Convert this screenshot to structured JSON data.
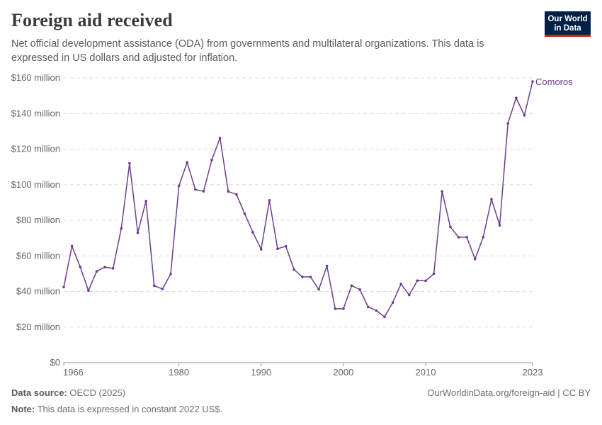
{
  "header": {
    "title": "Foreign aid received",
    "subtitle": "Net official development assistance (ODA) from governments and multilateral organizations. This data is expressed in US dollars and adjusted for inflation."
  },
  "logo": {
    "line1": "Our World",
    "line2": "in Data"
  },
  "footer": {
    "source_label": "Data source:",
    "source_value": "OECD (2025)",
    "note_label": "Note:",
    "note_value": "This data is expressed in constant 2022 US$.",
    "url": "OurWorldinData.org/foreign-aid | CC BY"
  },
  "colors": {
    "series": "#6b3d8f",
    "grid": "#dddddd",
    "axis": "#666666"
  },
  "chart_data": {
    "type": "line",
    "title": "Foreign aid received",
    "xlim": [
      1966,
      2023
    ],
    "ylim": [
      0,
      160000000
    ],
    "x_ticks": [
      1966,
      1980,
      1990,
      2000,
      2010,
      2023
    ],
    "y_ticks": [
      {
        "value": 0,
        "label": "$0"
      },
      {
        "value": 20000000,
        "label": "$20 million"
      },
      {
        "value": 40000000,
        "label": "$40 million"
      },
      {
        "value": 60000000,
        "label": "$60 million"
      },
      {
        "value": 80000000,
        "label": "$80 million"
      },
      {
        "value": 100000000,
        "label": "$100 million"
      },
      {
        "value": 120000000,
        "label": "$120 million"
      },
      {
        "value": 140000000,
        "label": "$140 million"
      },
      {
        "value": 160000000,
        "label": "$160 million"
      }
    ],
    "grid": "horizontal dashed",
    "series": [
      {
        "name": "Comoros",
        "x": [
          1966,
          1967,
          1968,
          1969,
          1970,
          1971,
          1972,
          1973,
          1974,
          1975,
          1976,
          1977,
          1978,
          1979,
          1980,
          1981,
          1982,
          1983,
          1984,
          1985,
          1986,
          1987,
          1988,
          1989,
          1990,
          1991,
          1992,
          1993,
          1994,
          1995,
          1996,
          1997,
          1998,
          1999,
          2000,
          2001,
          2002,
          2003,
          2004,
          2005,
          2006,
          2007,
          2008,
          2009,
          2010,
          2011,
          2012,
          2013,
          2014,
          2015,
          2016,
          2017,
          2018,
          2019,
          2020,
          2021,
          2022,
          2023
        ],
        "y": [
          42500000,
          65500000,
          53800000,
          40500000,
          51300000,
          53700000,
          53000000,
          75500000,
          112000000,
          73000000,
          90800000,
          43200000,
          41400000,
          49800000,
          99300000,
          112500000,
          97300000,
          96300000,
          113900000,
          126200000,
          96200000,
          94500000,
          83700000,
          73200000,
          63700000,
          91200000,
          64000000,
          65400000,
          52300000,
          48200000,
          48200000,
          41200000,
          54300000,
          30300000,
          30300000,
          43300000,
          41100000,
          31300000,
          29300000,
          25700000,
          33800000,
          44200000,
          38000000,
          46100000,
          46000000,
          50000000,
          96200000,
          76300000,
          70500000,
          70500000,
          58200000,
          70600000,
          91800000,
          77200000,
          134400000,
          148800000,
          139000000,
          158000000
        ]
      }
    ]
  }
}
